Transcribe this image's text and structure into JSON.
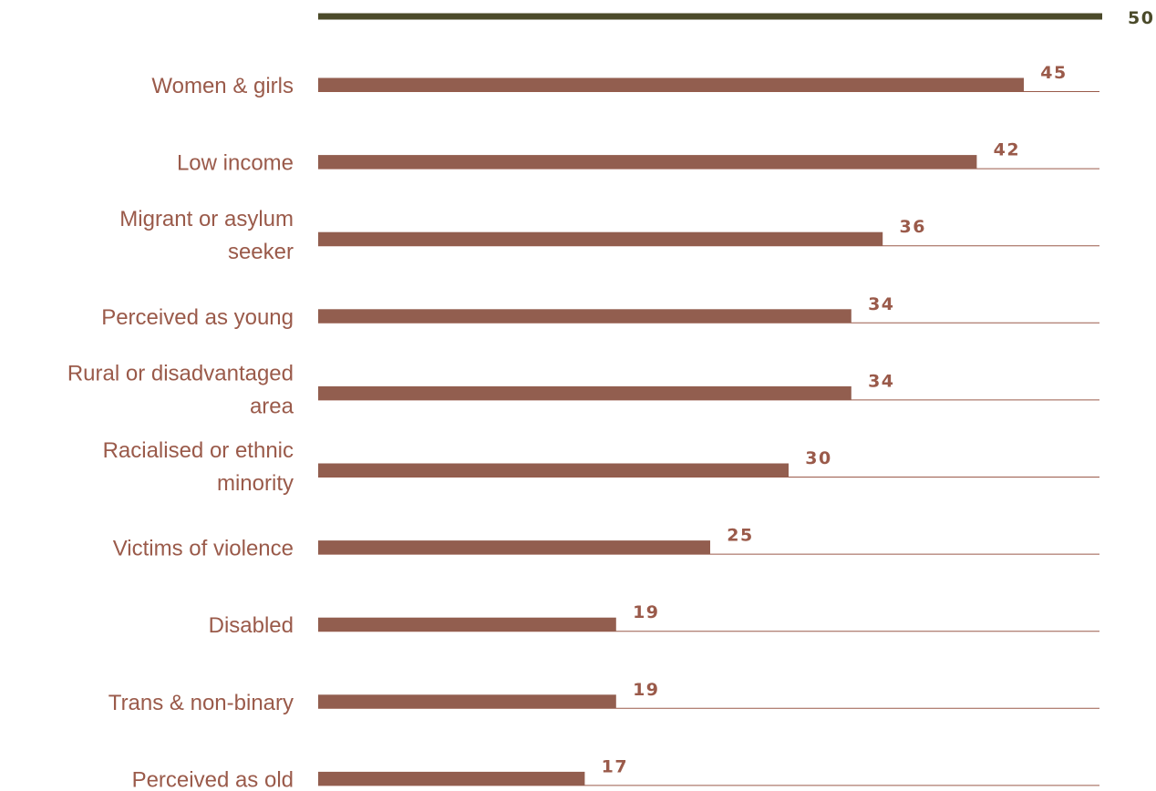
{
  "chart_data": {
    "type": "bar",
    "orientation": "horizontal",
    "categories": [
      "Women & girls",
      "Low income",
      "Migrant or asylum seeker",
      "Perceived as young",
      "Rural or disadvantaged area",
      "Racialised or ethnic minority",
      "Victims of violence",
      "Disabled",
      "Trans & non-binary",
      "Perceived as old"
    ],
    "category_lines": [
      [
        "Women & girls"
      ],
      [
        "Low income"
      ],
      [
        "Migrant or asylum",
        "seeker"
      ],
      [
        "Perceived as young"
      ],
      [
        "Rural or disadvantaged",
        "area"
      ],
      [
        "Racialised or ethnic",
        "minority"
      ],
      [
        "Victims of violence"
      ],
      [
        "Disabled"
      ],
      [
        "Trans & non-binary"
      ],
      [
        "Perceived as old"
      ]
    ],
    "values": [
      45,
      42,
      36,
      34,
      34,
      30,
      25,
      19,
      19,
      17
    ],
    "max_value": 50,
    "max_label": "50",
    "xlim": [
      0,
      50
    ],
    "title": "",
    "xlabel": "",
    "ylabel": "",
    "grid": false,
    "colors": {
      "bar": "#925e4f",
      "reference": "#4b4a2a",
      "label": "#9a5a4a",
      "baseline": "#9a5a4a"
    }
  }
}
